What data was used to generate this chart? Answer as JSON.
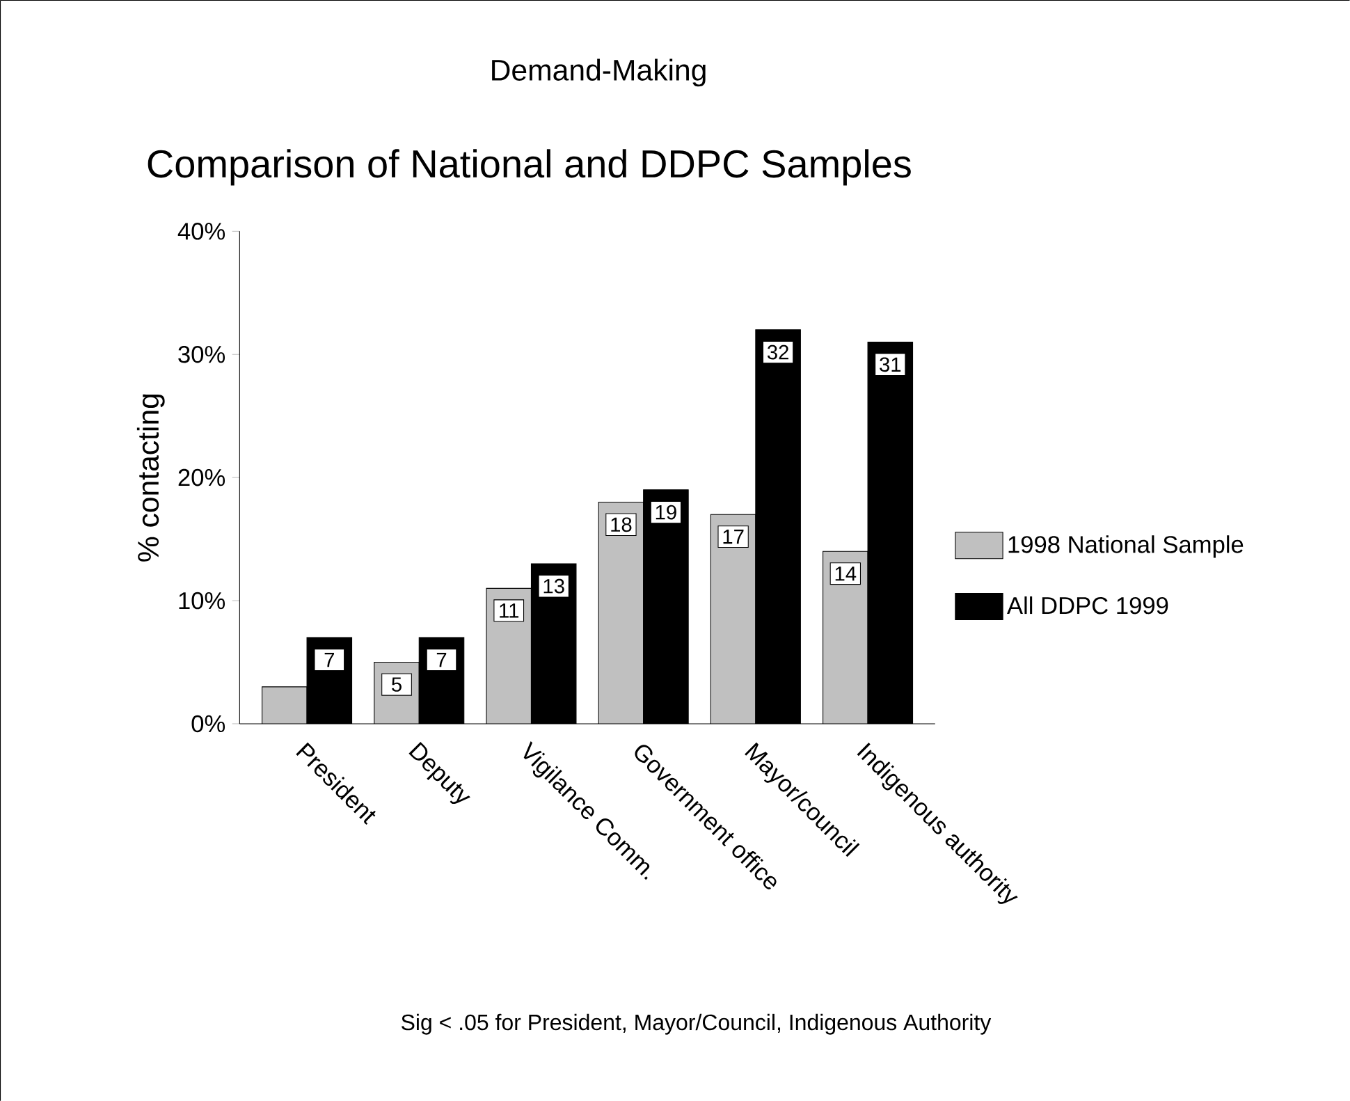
{
  "chart_data": {
    "type": "bar",
    "title": "Demand-Making",
    "subtitle": "Comparison of National and DDPC  Samples",
    "ylabel": "% contacting",
    "categories": [
      "President",
      "Deputy",
      "Vigilance Comm.",
      "Government office",
      "Mayor/council",
      "Indigenous authority"
    ],
    "series": [
      {
        "name": "1998 National Sample",
        "color": "#c0c0c0",
        "values": [
          3,
          5,
          11,
          18,
          17,
          14
        ],
        "value_labels": [
          null,
          "5",
          "11",
          "18",
          "17",
          "14"
        ]
      },
      {
        "name": "All DDPC 1999",
        "color": "#000000",
        "values": [
          7,
          7,
          13,
          19,
          32,
          31
        ],
        "value_labels": [
          "7",
          "7",
          "13",
          "19",
          "32",
          "31"
        ]
      }
    ],
    "ylim": [
      0,
      40
    ],
    "yticks": [
      {
        "value": 0,
        "label": "0%"
      },
      {
        "value": 10,
        "label": "10%"
      },
      {
        "value": 20,
        "label": "20%"
      },
      {
        "value": 30,
        "label": "30%"
      },
      {
        "value": 40,
        "label": "40%"
      }
    ],
    "legend": "right",
    "annotations": [
      "Sig < .05 for President, Mayor/Council, Indigenous Authority"
    ]
  }
}
